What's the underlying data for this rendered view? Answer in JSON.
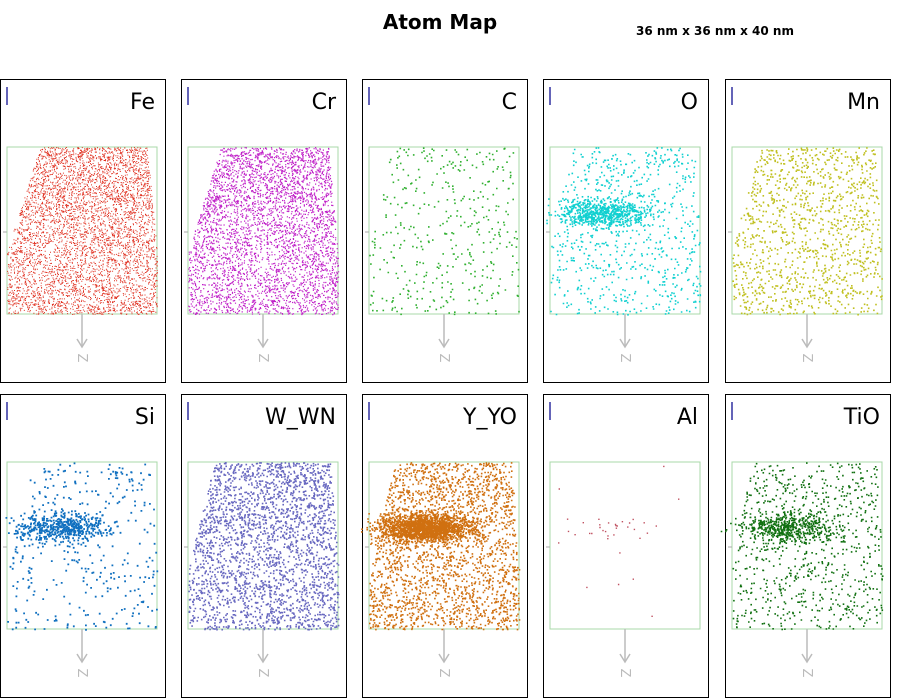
{
  "title": "Atom Map",
  "dimensions": "36 nm x 36 nm x 40 nm",
  "panels": [
    {
      "label": "Fe",
      "color": "#e03020"
    },
    {
      "label": "Cr",
      "color": "#c020c8"
    },
    {
      "label": "C",
      "color": "#30b030"
    },
    {
      "label": "O",
      "color": "#10d0d0"
    },
    {
      "label": "Mn",
      "color": "#c0c020"
    },
    {
      "label": "Si",
      "color": "#1070c0"
    },
    {
      "label": "W_WN",
      "color": "#6868c0"
    },
    {
      "label": "Y_YO",
      "color": "#d07010"
    },
    {
      "label": "Al",
      "color": "#c05060"
    },
    {
      "label": "TiO",
      "color": "#107010"
    }
  ],
  "axis_label": "Z"
}
